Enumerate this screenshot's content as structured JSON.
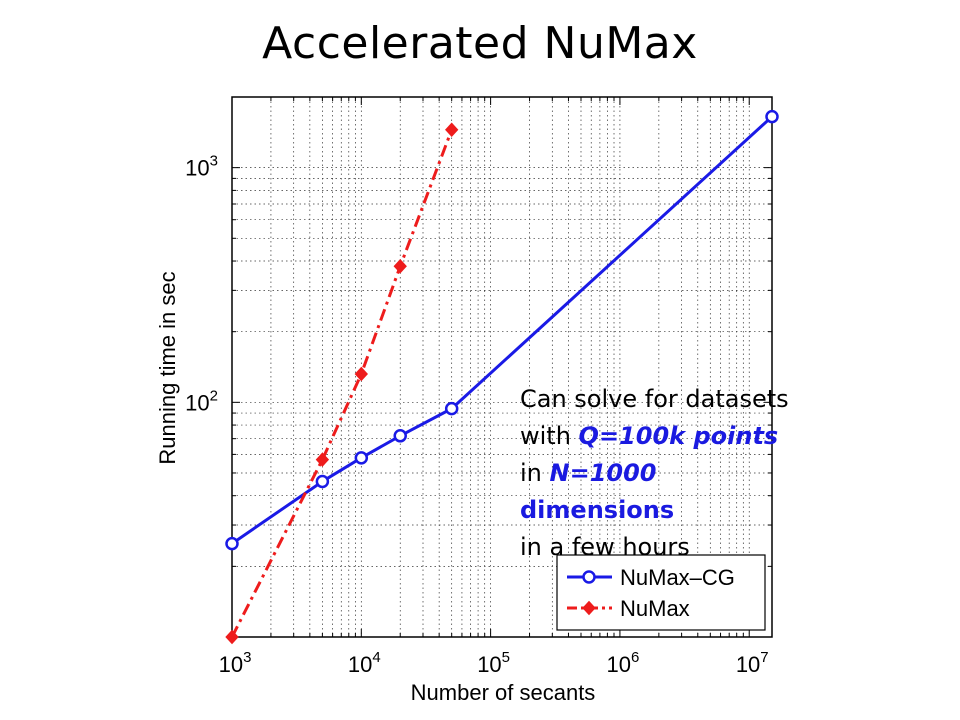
{
  "slide": {
    "title": "Accelerated NuMax"
  },
  "callout": {
    "l1": "Can solve for datasets",
    "l2_pre": "with ",
    "l2_em": "Q=100k points",
    "l3_pre": "in ",
    "l3_em": "N=1000",
    "l4": "dimensions",
    "l5": "in a few hours"
  },
  "chart_data": {
    "type": "line",
    "xlabel": "Number of secants",
    "ylabel": "Running time in sec",
    "xscale": "log",
    "yscale": "log",
    "xlim": [
      1000,
      15000000
    ],
    "ylim": [
      10,
      2000
    ],
    "xticks": [
      {
        "value": 1000,
        "base": "10",
        "exp": "3"
      },
      {
        "value": 10000,
        "base": "10",
        "exp": "4"
      },
      {
        "value": 100000,
        "base": "10",
        "exp": "5"
      },
      {
        "value": 1000000,
        "base": "10",
        "exp": "6"
      },
      {
        "value": 10000000,
        "base": "10",
        "exp": "7"
      }
    ],
    "yticks": [
      {
        "value": 100,
        "base": "10",
        "exp": "2"
      },
      {
        "value": 1000,
        "base": "10",
        "exp": "3"
      }
    ],
    "grid": true,
    "legend_position": "bottom-right",
    "series": [
      {
        "name": "NuMax–CG",
        "color": "#1a1ae6",
        "style": "solid",
        "marker": "circle-open",
        "x": [
          1000,
          5000,
          10000,
          20000,
          50000,
          15000000
        ],
        "y": [
          25,
          46,
          58,
          72,
          94,
          1650
        ]
      },
      {
        "name": "NuMax",
        "color": "#ee1c1c",
        "style": "dashdot",
        "marker": "diamond-filled",
        "x": [
          1000,
          5000,
          10000,
          20000,
          50000
        ],
        "y": [
          10,
          57,
          132,
          380,
          1450
        ]
      }
    ]
  }
}
